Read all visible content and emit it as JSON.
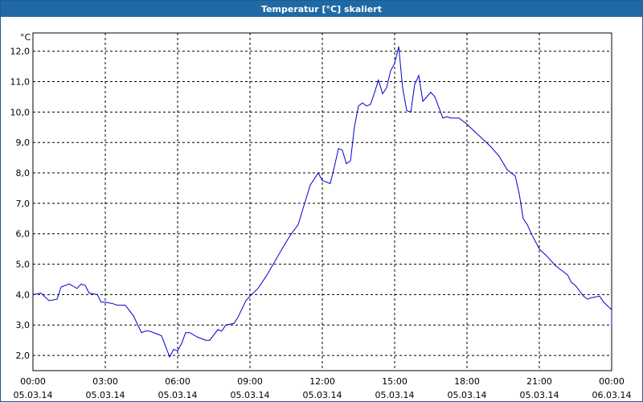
{
  "window": {
    "title": "Temperatur [°C] skaliert"
  },
  "colors": {
    "title_bar": "#1f6aa5",
    "series": "#0000c8",
    "grid": "#000000"
  },
  "chart_data": {
    "type": "line",
    "title": "Temperatur [°C] skaliert",
    "ylabel": "°C",
    "xlabel": "",
    "ylim": [
      1.5,
      12.6
    ],
    "xlim": [
      0,
      24
    ],
    "grid": true,
    "legend": "none",
    "y_ticks": [
      {
        "value": 2,
        "label": "2,0"
      },
      {
        "value": 3,
        "label": "3,0"
      },
      {
        "value": 4,
        "label": "4,0"
      },
      {
        "value": 5,
        "label": "5,0"
      },
      {
        "value": 6,
        "label": "6,0"
      },
      {
        "value": 7,
        "label": "7,0"
      },
      {
        "value": 8,
        "label": "8,0"
      },
      {
        "value": 9,
        "label": "9,0"
      },
      {
        "value": 10,
        "label": "10,0"
      },
      {
        "value": 11,
        "label": "11,0"
      },
      {
        "value": 12,
        "label": "12,0"
      }
    ],
    "x_ticks": [
      {
        "value": 0,
        "time": "00:00",
        "date": "05.03.14"
      },
      {
        "value": 3,
        "time": "03:00",
        "date": "05.03.14"
      },
      {
        "value": 6,
        "time": "06:00",
        "date": "05.03.14"
      },
      {
        "value": 9,
        "time": "09:00",
        "date": "05.03.14"
      },
      {
        "value": 12,
        "time": "12:00",
        "date": "05.03.14"
      },
      {
        "value": 15,
        "time": "15:00",
        "date": "05.03.14"
      },
      {
        "value": 18,
        "time": "18:00",
        "date": "05.03.14"
      },
      {
        "value": 21,
        "time": "21:00",
        "date": "05.03.14"
      },
      {
        "value": 24,
        "time": "00:00",
        "date": "06.03.14"
      }
    ],
    "series": [
      {
        "points": [
          [
            0.0,
            4.0
          ],
          [
            0.33,
            4.05
          ],
          [
            0.67,
            3.8
          ],
          [
            1.0,
            3.85
          ],
          [
            1.17,
            4.25
          ],
          [
            1.5,
            4.35
          ],
          [
            1.83,
            4.2
          ],
          [
            2.0,
            4.35
          ],
          [
            2.17,
            4.3
          ],
          [
            2.33,
            4.05
          ],
          [
            2.67,
            4.0
          ],
          [
            2.83,
            3.75
          ],
          [
            3.0,
            3.75
          ],
          [
            3.33,
            3.7
          ],
          [
            3.5,
            3.65
          ],
          [
            3.83,
            3.65
          ],
          [
            4.17,
            3.3
          ],
          [
            4.5,
            2.75
          ],
          [
            4.67,
            2.8
          ],
          [
            4.83,
            2.8
          ],
          [
            5.33,
            2.65
          ],
          [
            5.5,
            2.3
          ],
          [
            5.67,
            1.95
          ],
          [
            5.83,
            2.2
          ],
          [
            6.0,
            2.15
          ],
          [
            6.17,
            2.4
          ],
          [
            6.33,
            2.75
          ],
          [
            6.5,
            2.75
          ],
          [
            6.83,
            2.6
          ],
          [
            7.17,
            2.5
          ],
          [
            7.33,
            2.5
          ],
          [
            7.67,
            2.85
          ],
          [
            7.83,
            2.8
          ],
          [
            8.0,
            3.0
          ],
          [
            8.33,
            3.05
          ],
          [
            8.5,
            3.25
          ],
          [
            8.83,
            3.8
          ],
          [
            9.0,
            3.95
          ],
          [
            9.33,
            4.2
          ],
          [
            9.67,
            4.6
          ],
          [
            10.0,
            5.05
          ],
          [
            10.33,
            5.5
          ],
          [
            10.67,
            5.95
          ],
          [
            11.0,
            6.3
          ],
          [
            11.17,
            6.75
          ],
          [
            11.5,
            7.6
          ],
          [
            11.83,
            8.0
          ],
          [
            12.0,
            7.75
          ],
          [
            12.33,
            7.65
          ],
          [
            12.5,
            8.2
          ],
          [
            12.67,
            8.8
          ],
          [
            12.83,
            8.75
          ],
          [
            13.0,
            8.3
          ],
          [
            13.17,
            8.4
          ],
          [
            13.33,
            9.5
          ],
          [
            13.5,
            10.2
          ],
          [
            13.67,
            10.3
          ],
          [
            13.83,
            10.2
          ],
          [
            14.0,
            10.25
          ],
          [
            14.17,
            10.65
          ],
          [
            14.33,
            11.05
          ],
          [
            14.5,
            10.6
          ],
          [
            14.67,
            10.8
          ],
          [
            14.83,
            11.35
          ],
          [
            15.0,
            11.6
          ],
          [
            15.17,
            12.15
          ],
          [
            15.33,
            10.8
          ],
          [
            15.5,
            10.05
          ],
          [
            15.67,
            10.0
          ],
          [
            15.83,
            10.9
          ],
          [
            16.0,
            11.2
          ],
          [
            16.17,
            10.35
          ],
          [
            16.33,
            10.5
          ],
          [
            16.5,
            10.65
          ],
          [
            16.67,
            10.5
          ],
          [
            17.0,
            9.8
          ],
          [
            17.17,
            9.85
          ],
          [
            17.33,
            9.8
          ],
          [
            17.67,
            9.8
          ],
          [
            18.0,
            9.6
          ],
          [
            18.33,
            9.35
          ],
          [
            18.67,
            9.1
          ],
          [
            19.0,
            8.85
          ],
          [
            19.33,
            8.55
          ],
          [
            19.67,
            8.1
          ],
          [
            20.0,
            7.9
          ],
          [
            20.17,
            7.3
          ],
          [
            20.33,
            6.5
          ],
          [
            20.5,
            6.3
          ],
          [
            20.67,
            6.0
          ],
          [
            21.0,
            5.5
          ],
          [
            21.33,
            5.25
          ],
          [
            21.67,
            4.95
          ],
          [
            22.0,
            4.75
          ],
          [
            22.17,
            4.65
          ],
          [
            22.33,
            4.4
          ],
          [
            22.5,
            4.3
          ],
          [
            22.83,
            3.95
          ],
          [
            23.0,
            3.85
          ],
          [
            23.17,
            3.9
          ],
          [
            23.5,
            3.95
          ],
          [
            23.67,
            3.75
          ],
          [
            24.0,
            3.5
          ],
          [
            24.33,
            3.25
          ],
          [
            24.67,
            3.2
          ],
          [
            25.17,
            3.0
          ]
        ]
      }
    ]
  }
}
